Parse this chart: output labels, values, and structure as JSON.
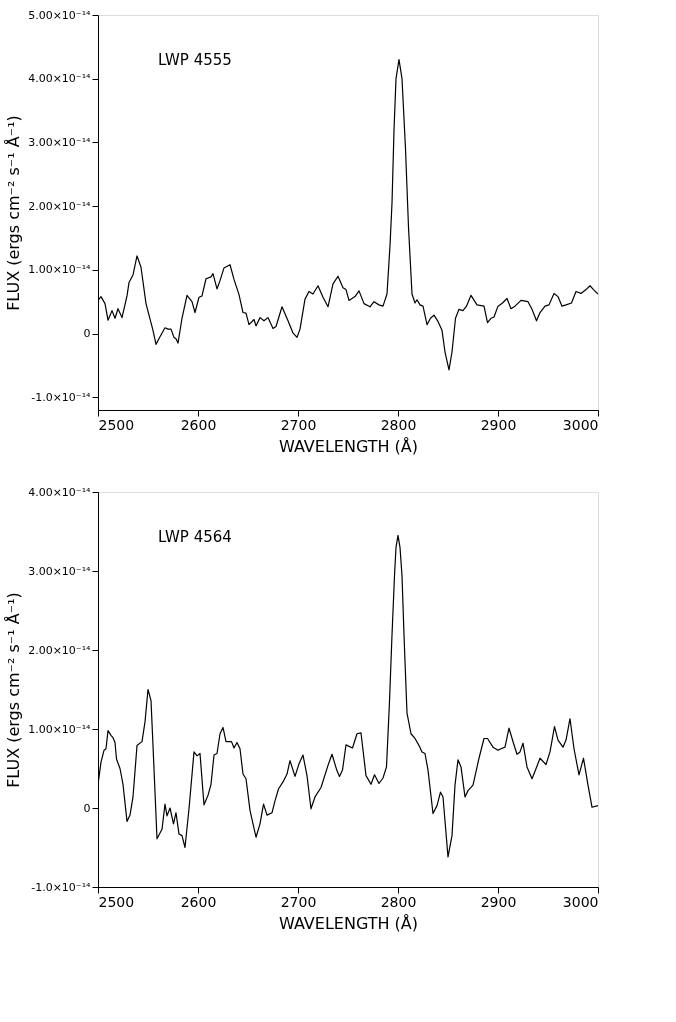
{
  "chart_data": [
    {
      "type": "line",
      "xlabel": "WAVELENGTH (Å)",
      "ylabel": "FLUX  (ergs cm⁻² s⁻¹ Å⁻¹)",
      "annotations": [
        "LWP 4555"
      ],
      "xlim": [
        2500,
        3000
      ],
      "xticks": [
        2500,
        2600,
        2700,
        2800,
        2900,
        3000
      ],
      "ylim": [
        -1.2e-14,
        5e-14
      ],
      "yticks": [
        {
          "value": -1e-14,
          "label": "-1.0×10⁻¹⁴"
        },
        0,
        {
          "value": 1e-14,
          "label": "1.00×10⁻¹⁴"
        },
        {
          "value": 2e-14,
          "label": "2.00×10⁻¹⁴"
        },
        {
          "value": 3e-14,
          "label": "3.00×10⁻¹⁴"
        },
        {
          "value": 4e-14,
          "label": "4.00×10⁻¹⁴"
        },
        {
          "value": 5e-14,
          "label": "5.00×10⁻¹⁴"
        }
      ],
      "grid": false,
      "marker": "none",
      "line_style": "solid",
      "series": [
        {
          "color": "#000000",
          "x": [
            2500,
            2503,
            2507,
            2510,
            2514,
            2517,
            2520,
            2524,
            2529,
            2531,
            2535,
            2539,
            2543,
            2548,
            2555,
            2558,
            2562,
            2567,
            2570,
            2573,
            2576,
            2578,
            2580,
            2584,
            2589,
            2594,
            2597,
            2601,
            2604,
            2608,
            2613,
            2615,
            2619,
            2622,
            2626,
            2632,
            2636,
            2641,
            2645,
            2648,
            2651,
            2656,
            2658,
            2662,
            2666,
            2670,
            2675,
            2678,
            2684,
            2690,
            2695,
            2699,
            2702,
            2707,
            2711,
            2715,
            2720,
            2725,
            2730,
            2735,
            2740,
            2745,
            2748,
            2751,
            2757,
            2761,
            2766,
            2772,
            2776,
            2781,
            2785,
            2789,
            2792,
            2794,
            2796,
            2798,
            2801,
            2804,
            2807.5,
            2810.5,
            2814,
            2817,
            2819,
            2822,
            2825,
            2829,
            2832.5,
            2836,
            2840,
            2844,
            2847,
            2851,
            2854,
            2857.5,
            2861,
            2865,
            2868.5,
            2873,
            2879,
            2886,
            2889.5,
            2893,
            2896,
            2900,
            2904.5,
            2909,
            2913,
            2917,
            2923,
            2930,
            2934,
            2938.5,
            2942,
            2947,
            2951,
            2956,
            2960,
            2964,
            2968,
            2973.5,
            2978,
            2983,
            2988,
            2992,
            2995.5,
            3000
          ],
          "values": [
            5.2e-15,
            5.8e-15,
            4.7e-15,
            2.1e-15,
            3.6e-15,
            2.4e-15,
            3.9e-15,
            2.5e-15,
            5.9e-15,
            8e-15,
            9.2e-15,
            1.22e-14,
            1.04e-14,
            4.7e-15,
            5e-16,
            -1.7e-15,
            -5e-16,
            9e-16,
            7e-16,
            7e-16,
            -6e-16,
            -8e-16,
            -1.5e-15,
            2.4e-15,
            6e-15,
            5e-15,
            3.3e-15,
            5.7e-15,
            5.9e-15,
            8.6e-15,
            8.9e-15,
            9.4e-15,
            7e-15,
            8.3e-15,
            1.03e-14,
            1.08e-14,
            8.5e-15,
            6.1e-15,
            3.3e-15,
            3.2e-15,
            1.4e-15,
            2.2e-15,
            1.2e-15,
            2.5e-15,
            2e-15,
            2.5e-15,
            8e-16,
            1.1e-15,
            4.2e-15,
            2e-15,
            1e-16,
            -6e-16,
            7e-16,
            5.4e-15,
            6.6e-15,
            6.2e-15,
            7.5e-15,
            5.7e-15,
            4.2e-15,
            7.8e-15,
            9e-15,
            7.2e-15,
            6.9e-15,
            5.2e-15,
            5.8e-15,
            6.7e-15,
            4.7e-15,
            4.2e-15,
            5e-15,
            4.5e-15,
            4.3e-15,
            6.2e-15,
            1.38e-14,
            2.05e-14,
            3.19e-14,
            4e-14,
            4.3e-14,
            4e-14,
            2.9e-14,
            1.67e-14,
            6.2e-15,
            4.8e-15,
            5.3e-15,
            4.5e-15,
            4.3e-15,
            1.4e-15,
            2.4e-15,
            2.9e-15,
            1.9e-15,
            5e-16,
            -2.9e-15,
            -5.7e-15,
            -2.9e-15,
            2.4e-15,
            3.8e-15,
            3.6e-15,
            4.3e-15,
            6e-15,
            4.5e-15,
            4.3e-15,
            1.7e-15,
            2.4e-15,
            2.6e-15,
            4.3e-15,
            4.8e-15,
            5.5e-15,
            3.9e-15,
            4.3e-15,
            5.2e-15,
            5e-15,
            3.8e-15,
            2e-15,
            3.3e-15,
            4.3e-15,
            4.5e-15,
            6.3e-15,
            5.8e-15,
            4.3e-15,
            4.5e-15,
            4.8e-15,
            6.6e-15,
            6.3e-15,
            6.9e-15,
            7.5e-15,
            6.9e-15,
            6.2e-15
          ]
        }
      ]
    },
    {
      "type": "line",
      "xlabel": "WAVELENGTH (Å)",
      "ylabel": "FLUX  (ergs cm⁻² s⁻¹ Å⁻¹)",
      "annotations": [
        "LWP 4564"
      ],
      "xlim": [
        2500,
        3000
      ],
      "xticks": [
        2500,
        2600,
        2700,
        2800,
        2900,
        3000
      ],
      "ylim": [
        -1e-14,
        4e-14
      ],
      "yticks": [
        {
          "value": -1e-14,
          "label": "-1.0×10⁻¹⁴"
        },
        0,
        {
          "value": 1e-14,
          "label": "1.00×10⁻¹⁴"
        },
        {
          "value": 2e-14,
          "label": "2.00×10⁻¹⁴"
        },
        {
          "value": 3e-14,
          "label": "3.00×10⁻¹⁴"
        },
        {
          "value": 4e-14,
          "label": "4.00×10⁻¹⁴"
        }
      ],
      "grid": false,
      "marker": "none",
      "line_style": "solid",
      "series": [
        {
          "color": "#000000",
          "x": [
            2500,
            2503,
            2506,
            2508,
            2510,
            2513,
            2515,
            2517,
            2518.5,
            2522,
            2525,
            2529,
            2532,
            2535,
            2539,
            2544,
            2547,
            2550,
            2553,
            2555,
            2559,
            2564,
            2567,
            2569,
            2572,
            2575.5,
            2578,
            2581,
            2584,
            2587,
            2591,
            2596,
            2599,
            2602,
            2606,
            2610,
            2613,
            2616,
            2619,
            2622,
            2625,
            2628,
            2633.5,
            2636,
            2639,
            2642,
            2645,
            2648,
            2652,
            2658,
            2662,
            2665.5,
            2669,
            2674,
            2677,
            2680.5,
            2685,
            2689,
            2692,
            2697,
            2701,
            2705,
            2709,
            2713,
            2717,
            2723,
            2730,
            2734,
            2739,
            2741.5,
            2744.5,
            2748,
            2751,
            2754.5,
            2759,
            2763,
            2768,
            2773,
            2776.5,
            2781,
            2785,
            2788.5,
            2791.5,
            2794,
            2796.5,
            2798,
            2800,
            2802,
            2804,
            2806,
            2809,
            2813,
            2817,
            2821.5,
            2824,
            2827,
            2830,
            2835,
            2839,
            2842.5,
            2845,
            2847.5,
            2850,
            2854,
            2857,
            2860,
            2863,
            2867,
            2870,
            2875,
            2881,
            2886,
            2889.5,
            2895,
            2900,
            2903,
            2907,
            2911,
            2915.5,
            2919,
            2922,
            2925,
            2929,
            2934,
            2937.5,
            2942,
            2948,
            2952,
            2956.5,
            2960,
            2965,
            2968,
            2972,
            2976,
            2981,
            2985.5,
            2990,
            2994,
            3000
          ],
          "values": [
            3e-15,
            5.8e-15,
            7.3e-15,
            7.5e-15,
            9.8e-15,
            9.2e-15,
            8.9e-15,
            8.3e-15,
            6.2e-15,
            5e-15,
            3e-15,
            -1.7e-15,
            -9e-16,
            1.4e-15,
            7.9e-15,
            8.4e-15,
            1.09e-14,
            1.5e-14,
            1.36e-14,
            7.9e-15,
            -3.9e-15,
            -2.7e-15,
            5e-16,
            -1e-15,
            0,
            -2e-15,
            -6e-16,
            -3.3e-15,
            -3.5e-15,
            -5e-15,
            -1e-16,
            7.1e-15,
            6.6e-15,
            6.9e-15,
            4e-16,
            1.6e-15,
            3e-15,
            6.7e-15,
            6.9e-15,
            9.4e-15,
            1.02e-14,
            8.4e-15,
            8.4e-15,
            7.6e-15,
            8.3e-15,
            7.5e-15,
            4.3e-15,
            3.7e-15,
            -3e-16,
            -3.7e-15,
            -2e-15,
            5e-16,
            -9e-16,
            -6e-16,
            9e-16,
            2.4e-15,
            3.3e-15,
            4.3e-15,
            6e-15,
            4e-15,
            5.6e-15,
            6.7e-15,
            4.1e-15,
            -1e-16,
            1.4e-15,
            2.6e-15,
            5.4e-15,
            6.8e-15,
            4.7e-15,
            4e-15,
            4.8e-15,
            8e-15,
            7.8e-15,
            7.6e-15,
            9.4e-15,
            9.5e-15,
            4.1e-15,
            3e-15,
            4.2e-15,
            3.1e-15,
            3.8e-15,
            5.2e-15,
            1.35e-14,
            2.19e-14,
            2.94e-14,
            3.3e-14,
            3.45e-14,
            3.3e-14,
            2.94e-14,
            2.19e-14,
            1.2e-14,
            9.4e-15,
            8.8e-15,
            7.8e-15,
            7.1e-15,
            6.9e-15,
            4.8e-15,
            -7e-16,
            3e-16,
            2e-15,
            1.4e-15,
            -2.4e-15,
            -6.2e-15,
            -3.5e-15,
            2.9e-15,
            6.1e-15,
            5.2e-15,
            1.4e-15,
            2.2e-15,
            2.9e-15,
            6.3e-15,
            8.8e-15,
            8.8e-15,
            7.7e-15,
            7.3e-15,
            7.5e-15,
            7.7e-15,
            1.01e-14,
            8.2e-15,
            6.8e-15,
            7.1e-15,
            8.2e-15,
            5.2e-15,
            3.7e-15,
            4.8e-15,
            6.3e-15,
            5.5e-15,
            7.1e-15,
            1.03e-14,
            8.6e-15,
            7.7e-15,
            8.6e-15,
            1.13e-14,
            7.5e-15,
            4.2e-15,
            6.3e-15,
            2.9e-15,
            1e-16,
            3e-16
          ]
        }
      ]
    }
  ]
}
